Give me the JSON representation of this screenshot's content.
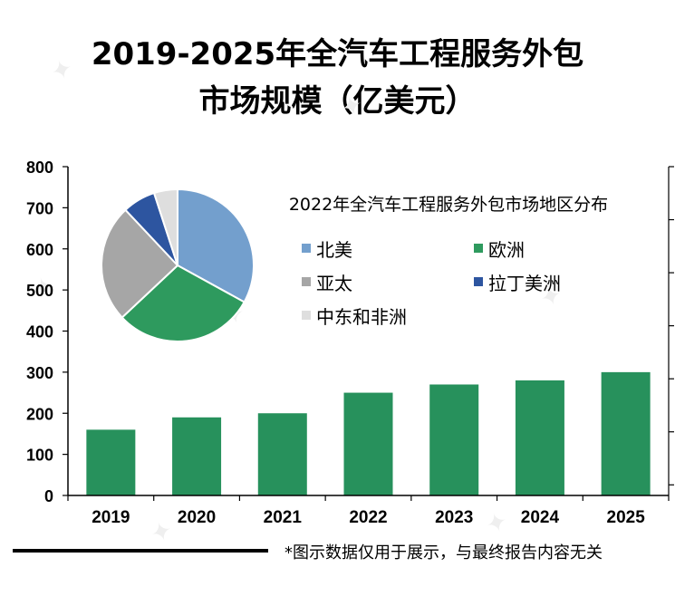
{
  "title": {
    "line1": "2019-2025年全汽车工程服务外包",
    "line2": "市场规模（亿美元）"
  },
  "footnote": "*图示数据仅用于展示，与最终报告内容无关",
  "colors": {
    "bar": "#27915c",
    "axis": "#000000"
  },
  "chart_data": [
    {
      "type": "bar",
      "title": "2019-2025年全汽车工程服务外包市场规模（亿美元）",
      "categories": [
        "2019",
        "2020",
        "2021",
        "2022",
        "2023",
        "2024",
        "2025"
      ],
      "values": [
        160,
        190,
        200,
        250,
        270,
        280,
        300
      ],
      "ylim": [
        0,
        800
      ],
      "yticks": [
        0,
        100,
        200,
        300,
        400,
        500,
        600,
        700,
        800
      ],
      "xlabel": "",
      "ylabel": "",
      "grid": false
    },
    {
      "type": "pie",
      "title": "2022年全汽车工程服务外包市场地区分布",
      "labels": [
        "北美",
        "欧洲",
        "亚太",
        "拉丁美洲",
        "中东和非洲"
      ],
      "values": [
        33,
        30,
        25,
        7,
        5
      ],
      "colors": [
        "#739fcd",
        "#2e9a5e",
        "#a6a6a6",
        "#2d55a0",
        "#dedede"
      ],
      "legend": "right"
    }
  ]
}
